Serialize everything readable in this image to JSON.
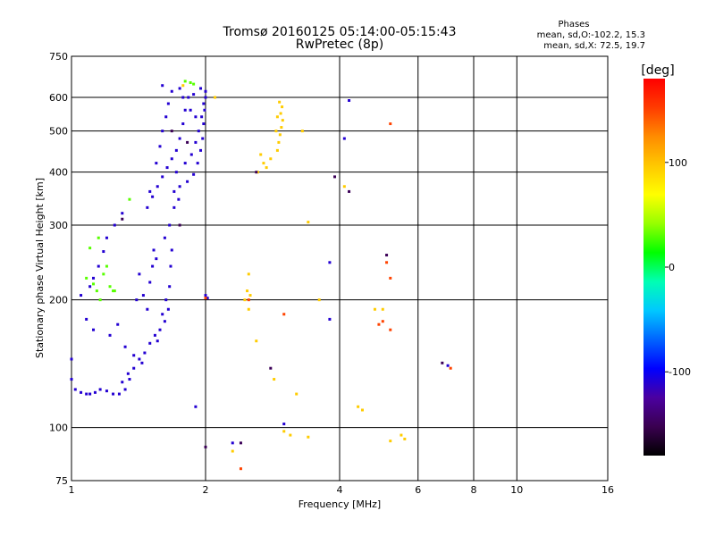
{
  "chart_data": {
    "type": "scatter",
    "title": "Tromsø 20160125 05:14:00-05:15:43",
    "subtitle": "RwPretec (8p)",
    "xlabel": "Frequency [MHz]",
    "ylabel": "Stationary phase Virtual Height [km]",
    "x_scale": "log",
    "y_scale": "log",
    "xlim": [
      1,
      16
    ],
    "ylim": [
      75,
      750
    ],
    "x_ticks": [
      1,
      2,
      4,
      6,
      8,
      10,
      16
    ],
    "y_ticks": [
      75,
      100,
      200,
      300,
      400,
      500,
      600,
      750
    ],
    "grid": true,
    "phases_info": {
      "title": "Phases",
      "line_O": "mean, sd,O:-102.2, 15.3",
      "line_X": "mean, sd,X:  72.5, 19.7"
    },
    "colorbar": {
      "label": "[deg]",
      "ticks": [
        100,
        0,
        -100
      ],
      "range": [
        -180,
        180
      ],
      "colors": [
        "#000000",
        "#3a0050",
        "#4b00a0",
        "#0000ff",
        "#0064ff",
        "#00c8ff",
        "#00ffb4",
        "#00ff00",
        "#96ff00",
        "#ffff00",
        "#ffc800",
        "#ff8c00",
        "#ff3c00",
        "#ff0000"
      ]
    },
    "series": [
      {
        "phase": -110,
        "points": [
          [
            1.0,
            130
          ],
          [
            1.02,
            123
          ],
          [
            1.05,
            121
          ],
          [
            1.08,
            120
          ],
          [
            1.1,
            120
          ],
          [
            1.13,
            121
          ],
          [
            1.16,
            123
          ],
          [
            1.2,
            122
          ],
          [
            1.24,
            120
          ],
          [
            1.28,
            120
          ],
          [
            1.32,
            123
          ],
          [
            1.35,
            130
          ],
          [
            1.38,
            138
          ],
          [
            1.42,
            145
          ],
          [
            1.46,
            150
          ],
          [
            1.5,
            158
          ],
          [
            1.54,
            165
          ],
          [
            1.58,
            170
          ],
          [
            1.62,
            178
          ],
          [
            1.65,
            190
          ],
          [
            1.3,
            128
          ],
          [
            1.34,
            134
          ],
          [
            1.44,
            142
          ],
          [
            1.56,
            160
          ],
          [
            1.6,
            185
          ],
          [
            1.63,
            200
          ],
          [
            1.66,
            215
          ],
          [
            1.67,
            240
          ],
          [
            1.68,
            262
          ],
          [
            1.05,
            205
          ],
          [
            1.1,
            215
          ],
          [
            1.12,
            225
          ],
          [
            1.15,
            240
          ],
          [
            1.18,
            260
          ],
          [
            1.2,
            280
          ],
          [
            1.25,
            300
          ],
          [
            1.3,
            320
          ],
          [
            1.45,
            205
          ],
          [
            1.48,
            190
          ],
          [
            1.5,
            220
          ],
          [
            1.52,
            240
          ],
          [
            1.53,
            262
          ],
          [
            1.55,
            250
          ],
          [
            1.08,
            180
          ],
          [
            1.12,
            170
          ],
          [
            1.22,
            165
          ],
          [
            1.27,
            175
          ],
          [
            1.32,
            155
          ],
          [
            1.38,
            148
          ],
          [
            1.4,
            200
          ],
          [
            1.42,
            230
          ],
          [
            1.48,
            330
          ],
          [
            1.52,
            350
          ],
          [
            1.56,
            370
          ],
          [
            1.6,
            390
          ],
          [
            1.64,
            410
          ],
          [
            1.68,
            430
          ],
          [
            1.72,
            450
          ],
          [
            1.75,
            480
          ],
          [
            1.78,
            520
          ],
          [
            1.8,
            560
          ],
          [
            1.83,
            600
          ],
          [
            1.5,
            360
          ],
          [
            1.55,
            420
          ],
          [
            1.58,
            460
          ],
          [
            1.6,
            500
          ],
          [
            1.63,
            540
          ],
          [
            1.65,
            580
          ],
          [
            1.68,
            620
          ],
          [
            1.6,
            640
          ],
          [
            1.7,
            360
          ],
          [
            1.75,
            370
          ],
          [
            1.82,
            380
          ],
          [
            1.88,
            395
          ],
          [
            1.92,
            420
          ],
          [
            1.95,
            450
          ],
          [
            1.97,
            480
          ],
          [
            1.98,
            520
          ],
          [
            1.99,
            560
          ],
          [
            2.0,
            600
          ],
          [
            1.72,
            400
          ],
          [
            1.8,
            420
          ],
          [
            1.86,
            440
          ],
          [
            1.9,
            470
          ],
          [
            1.93,
            500
          ],
          [
            1.96,
            540
          ],
          [
            1.98,
            580
          ],
          [
            2.0,
            620
          ],
          [
            1.75,
            630
          ],
          [
            1.78,
            600
          ],
          [
            1.85,
            560
          ],
          [
            1.9,
            540
          ],
          [
            1.88,
            610
          ],
          [
            1.95,
            630
          ],
          [
            1.62,
            280
          ],
          [
            1.66,
            300
          ],
          [
            1.7,
            330
          ],
          [
            1.74,
            345
          ],
          [
            1.9,
            112
          ],
          [
            2.0,
            205
          ],
          [
            2.02,
            202
          ],
          [
            1.0,
            145
          ],
          [
            3.0,
            102
          ],
          [
            3.8,
            245
          ],
          [
            2.3,
            92
          ],
          [
            3.8,
            180
          ],
          [
            4.2,
            590
          ],
          [
            4.1,
            480
          ],
          [
            7.0,
            140
          ]
        ]
      },
      {
        "phase": 95,
        "points": [
          [
            2.9,
            450
          ],
          [
            2.92,
            470
          ],
          [
            2.94,
            490
          ],
          [
            2.96,
            510
          ],
          [
            2.98,
            530
          ],
          [
            2.95,
            550
          ],
          [
            2.97,
            570
          ],
          [
            2.93,
            585
          ],
          [
            2.9,
            540
          ],
          [
            2.88,
            500
          ],
          [
            2.8,
            430
          ],
          [
            2.74,
            410
          ],
          [
            2.7,
            420
          ],
          [
            2.62,
            400
          ],
          [
            2.66,
            440
          ],
          [
            2.5,
            230
          ],
          [
            2.48,
            210
          ],
          [
            2.45,
            200
          ],
          [
            2.5,
            190
          ],
          [
            2.52,
            205
          ],
          [
            3.3,
            500
          ],
          [
            3.4,
            305
          ],
          [
            4.1,
            370
          ],
          [
            4.8,
            190
          ],
          [
            3.4,
            95
          ],
          [
            3.1,
            96
          ],
          [
            3.0,
            98
          ],
          [
            5.2,
            93
          ],
          [
            5.5,
            96
          ],
          [
            5.6,
            94
          ],
          [
            4.5,
            110
          ],
          [
            4.4,
            112
          ],
          [
            5.0,
            190
          ],
          [
            2.6,
            160
          ],
          [
            2.85,
            130
          ],
          [
            3.2,
            120
          ],
          [
            3.6,
            200
          ],
          [
            2.3,
            88
          ],
          [
            2.1,
            600
          ],
          [
            1.78,
            640
          ]
        ]
      },
      {
        "phase": 30,
        "points": [
          [
            1.08,
            225
          ],
          [
            1.12,
            218
          ],
          [
            1.14,
            210
          ],
          [
            1.16,
            200
          ],
          [
            1.18,
            230
          ],
          [
            1.2,
            240
          ],
          [
            1.22,
            215
          ],
          [
            1.24,
            210
          ],
          [
            1.1,
            265
          ],
          [
            1.15,
            280
          ],
          [
            1.85,
            650
          ],
          [
            1.8,
            655
          ],
          [
            1.88,
            645
          ],
          [
            1.25,
            210
          ],
          [
            1.35,
            345
          ]
        ]
      },
      {
        "phase": 150,
        "points": [
          [
            5.2,
            520
          ],
          [
            5.1,
            245
          ],
          [
            5.2,
            225
          ],
          [
            4.9,
            175
          ],
          [
            5.0,
            178
          ],
          [
            3.0,
            185
          ],
          [
            2.0,
            202
          ],
          [
            2.5,
            200
          ],
          [
            7.1,
            138
          ],
          [
            2.4,
            80
          ],
          [
            5.2,
            170
          ]
        ]
      },
      {
        "phase": -150,
        "points": [
          [
            4.2,
            360
          ],
          [
            3.9,
            390
          ],
          [
            2.6,
            400
          ],
          [
            2.4,
            92
          ],
          [
            2.0,
            90
          ],
          [
            2.8,
            138
          ],
          [
            5.1,
            255
          ],
          [
            1.75,
            300
          ],
          [
            1.3,
            310
          ],
          [
            1.68,
            500
          ],
          [
            1.82,
            470
          ],
          [
            6.8,
            142
          ]
        ]
      }
    ]
  }
}
